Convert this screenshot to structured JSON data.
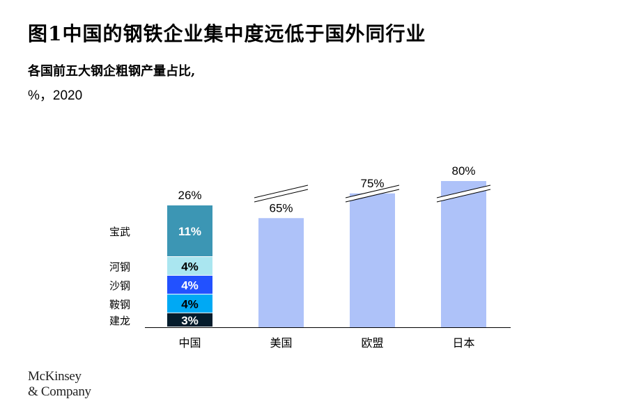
{
  "title": "图1中国的钢铁企业集中度远低于国外同行业",
  "subtitle": "各国前五大钢企粗钢产量占比,",
  "unit_line": "%，2020",
  "logo": {
    "line1": "McKinsey",
    "line2": "& Company"
  },
  "colors": {
    "bar": "#aec2f9",
    "axis": "#000000",
    "segment_dark_text": "#000000",
    "segment_light_text": "#ffffff"
  },
  "chart_data": {
    "type": "bar",
    "categories": [
      "中国",
      "美国",
      "欧盟",
      "日本"
    ],
    "values": [
      26,
      65,
      75,
      80
    ],
    "value_labels": [
      "26%",
      "65%",
      "75%",
      "80%"
    ],
    "axis_break": [
      "美国",
      "欧盟",
      "日本"
    ],
    "stacked_breakdown": {
      "category": "中国",
      "segments": [
        {
          "name": "建龙",
          "value": 3,
          "label": "3%",
          "color": "#051c2c",
          "text": "light"
        },
        {
          "name": "鞍钢",
          "value": 4,
          "label": "4%",
          "color": "#00a9f4",
          "text": "dark"
        },
        {
          "name": "沙钢",
          "value": 4,
          "label": "4%",
          "color": "#2251ff",
          "text": "light"
        },
        {
          "name": "河钢",
          "value": 4,
          "label": "4%",
          "color": "#aae6f0",
          "text": "dark"
        },
        {
          "name": "宝武",
          "value": 11,
          "label": "11%",
          "color": "#3c96b4",
          "text": "light"
        }
      ]
    },
    "title": "图1中国的钢铁企业集中度远低于国外同行业",
    "ylabel": "",
    "xlabel": ""
  }
}
